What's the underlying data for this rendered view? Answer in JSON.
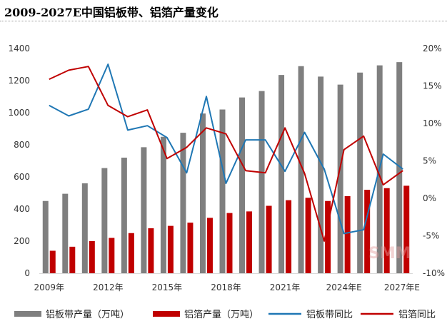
{
  "title": "2009-2027E中国铝板带、铝箔产量变化",
  "watermark": "SMM",
  "colors": {
    "plate_bar": "#7f7f7f",
    "foil_bar": "#c00000",
    "plate_line": "#1f77b4",
    "foil_line": "#c00000",
    "axis_text": "#333333"
  },
  "chart_data": {
    "type": "bar",
    "title": "2009-2027E中国铝板带、铝箔产量变化",
    "categories": [
      "2009年",
      "2010年",
      "2011年",
      "2012年",
      "2013年",
      "2014年",
      "2015年",
      "2016年",
      "2017年",
      "2018年",
      "2019年",
      "2020年",
      "2021年",
      "2022年",
      "2023年",
      "2024年E",
      "2025年E",
      "2026年E",
      "2027年E"
    ],
    "x_tick_labels": [
      "2009年",
      "2012年",
      "2015年",
      "2018年",
      "2021年",
      "2024年E",
      "2027年E"
    ],
    "y_left": {
      "ylim": [
        0,
        1400
      ],
      "ticks": [
        0,
        200,
        400,
        600,
        800,
        1000,
        1200,
        1400
      ]
    },
    "y_right": {
      "ylim": [
        -10,
        20
      ],
      "ticks": [
        -10,
        -5,
        0,
        5,
        10,
        15,
        20
      ],
      "tick_labels": [
        "-10%",
        "-5%",
        "0%",
        "5%",
        "10%",
        "15%",
        "20%"
      ]
    },
    "series": [
      {
        "name": "铝板带产量（万吨）",
        "kind": "bar",
        "axis": "left",
        "values": [
          450,
          495,
          560,
          655,
          720,
          785,
          850,
          875,
          995,
          1020,
          1095,
          1135,
          1235,
          1290,
          1225,
          1175,
          1250,
          1295,
          1315
        ]
      },
      {
        "name": "铝箔产量（万吨）",
        "kind": "bar",
        "axis": "left",
        "values": [
          140,
          165,
          200,
          220,
          250,
          280,
          295,
          315,
          345,
          375,
          385,
          420,
          455,
          470,
          450,
          480,
          520,
          530,
          545
        ]
      },
      {
        "name": "铝板带同比",
        "kind": "line",
        "axis": "right",
        "values": [
          12.4,
          11.0,
          11.9,
          17.9,
          9.1,
          9.7,
          8.1,
          3.4,
          13.6,
          2.0,
          7.8,
          7.8,
          3.6,
          8.8,
          3.9,
          -4.7,
          -4.2,
          5.9,
          3.9
        ]
      },
      {
        "name": "铝箔同比",
        "kind": "line",
        "axis": "right",
        "values": [
          15.9,
          17.1,
          17.6,
          12.4,
          10.9,
          11.8,
          5.3,
          6.8,
          9.4,
          8.6,
          3.7,
          3.4,
          9.4,
          3.3,
          -5.7,
          6.5,
          8.3,
          1.8,
          3.7
        ]
      }
    ],
    "legend_position": "bottom",
    "grid": false
  }
}
